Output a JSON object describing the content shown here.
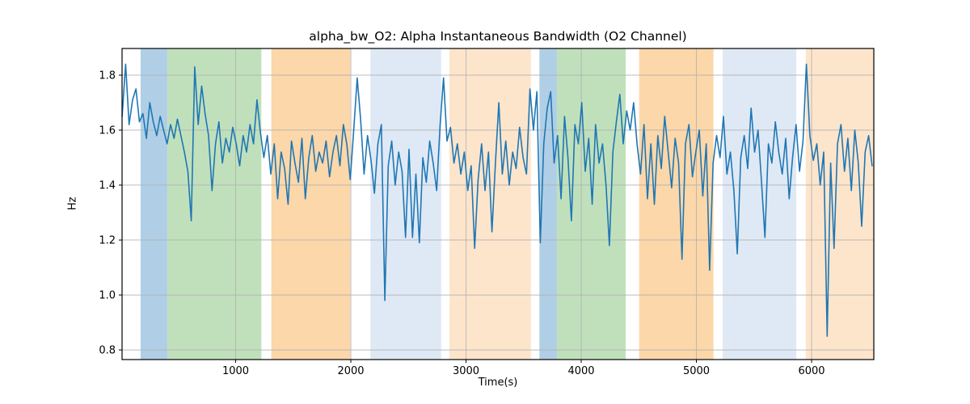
{
  "chart_data": {
    "type": "line",
    "title": "alpha_bw_O2: Alpha Instantaneous Bandwidth (O2 Channel)",
    "xlabel": "Time(s)",
    "ylabel": "Hz",
    "xlim": [
      14,
      6540
    ],
    "ylim": [
      0.765,
      1.897
    ],
    "xticks": [
      1000,
      2000,
      3000,
      4000,
      5000,
      6000
    ],
    "yticks": [
      0.8,
      1.0,
      1.2,
      1.4,
      1.6,
      1.8
    ],
    "grid": true,
    "legend": "none",
    "colors": {
      "line": "#1f77b4",
      "grid": "#b0b0b0",
      "spine": "#000000",
      "band_blue": "#b0cfe6",
      "band_green": "#c0e0bc",
      "band_orange": "#fcd7a9",
      "band_lightblue": "#dfe9f5",
      "band_paleorange": "#fde5cc"
    },
    "bands": [
      {
        "start": 175,
        "end": 409,
        "color": "band_blue"
      },
      {
        "start": 409,
        "end": 1223,
        "color": "band_green"
      },
      {
        "start": 1310,
        "end": 1995,
        "color": "band_orange"
      },
      {
        "start": 2170,
        "end": 2784,
        "color": "band_lightblue"
      },
      {
        "start": 2856,
        "end": 3563,
        "color": "band_paleorange"
      },
      {
        "start": 3637,
        "end": 3789,
        "color": "band_blue"
      },
      {
        "start": 3789,
        "end": 4386,
        "color": "band_green"
      },
      {
        "start": 4503,
        "end": 5148,
        "color": "band_orange"
      },
      {
        "start": 5228,
        "end": 5867,
        "color": "band_lightblue"
      },
      {
        "start": 5949,
        "end": 6540,
        "color": "band_paleorange"
      }
    ],
    "series": [
      {
        "name": "alpha_bw_O2",
        "t_start": 15,
        "t_step": 30,
        "values": [
          1.65,
          1.84,
          1.62,
          1.71,
          1.75,
          1.63,
          1.66,
          1.57,
          1.7,
          1.63,
          1.58,
          1.65,
          1.6,
          1.55,
          1.62,
          1.57,
          1.64,
          1.58,
          1.52,
          1.45,
          1.27,
          1.83,
          1.62,
          1.76,
          1.66,
          1.58,
          1.38,
          1.55,
          1.63,
          1.48,
          1.57,
          1.52,
          1.61,
          1.55,
          1.47,
          1.58,
          1.52,
          1.62,
          1.55,
          1.71,
          1.59,
          1.5,
          1.58,
          1.44,
          1.55,
          1.35,
          1.52,
          1.46,
          1.33,
          1.56,
          1.48,
          1.41,
          1.57,
          1.35,
          1.5,
          1.58,
          1.45,
          1.52,
          1.48,
          1.56,
          1.43,
          1.52,
          1.58,
          1.47,
          1.62,
          1.55,
          1.42,
          1.6,
          1.79,
          1.64,
          1.44,
          1.58,
          1.49,
          1.37,
          1.55,
          1.62,
          0.98,
          1.47,
          1.56,
          1.4,
          1.52,
          1.45,
          1.21,
          1.53,
          1.21,
          1.44,
          1.19,
          1.5,
          1.41,
          1.56,
          1.48,
          1.38,
          1.62,
          1.79,
          1.56,
          1.61,
          1.48,
          1.55,
          1.44,
          1.52,
          1.38,
          1.47,
          1.17,
          1.42,
          1.55,
          1.38,
          1.52,
          1.23,
          1.48,
          1.7,
          1.44,
          1.56,
          1.4,
          1.52,
          1.46,
          1.61,
          1.5,
          1.44,
          1.75,
          1.6,
          1.74,
          1.19,
          1.55,
          1.68,
          1.74,
          1.48,
          1.58,
          1.35,
          1.65,
          1.5,
          1.27,
          1.62,
          1.55,
          1.7,
          1.45,
          1.57,
          1.33,
          1.62,
          1.48,
          1.55,
          1.4,
          1.18,
          1.52,
          1.63,
          1.73,
          1.55,
          1.67,
          1.6,
          1.7,
          1.55,
          1.44,
          1.62,
          1.35,
          1.55,
          1.33,
          1.58,
          1.46,
          1.65,
          1.52,
          1.39,
          1.57,
          1.48,
          1.13,
          1.55,
          1.62,
          1.43,
          1.52,
          1.6,
          1.36,
          1.55,
          1.09,
          1.48,
          1.58,
          1.5,
          1.65,
          1.44,
          1.52,
          1.38,
          1.15,
          1.5,
          1.58,
          1.46,
          1.68,
          1.52,
          1.6,
          1.41,
          1.21,
          1.55,
          1.48,
          1.63,
          1.52,
          1.44,
          1.57,
          1.35,
          1.5,
          1.62,
          1.45,
          1.56,
          1.84,
          1.58,
          1.49,
          1.55,
          1.4,
          1.52,
          0.85,
          1.48,
          1.17,
          1.55,
          1.62,
          1.45,
          1.57,
          1.38,
          1.6,
          1.48,
          1.25,
          1.52,
          1.58,
          1.47
        ]
      }
    ]
  }
}
